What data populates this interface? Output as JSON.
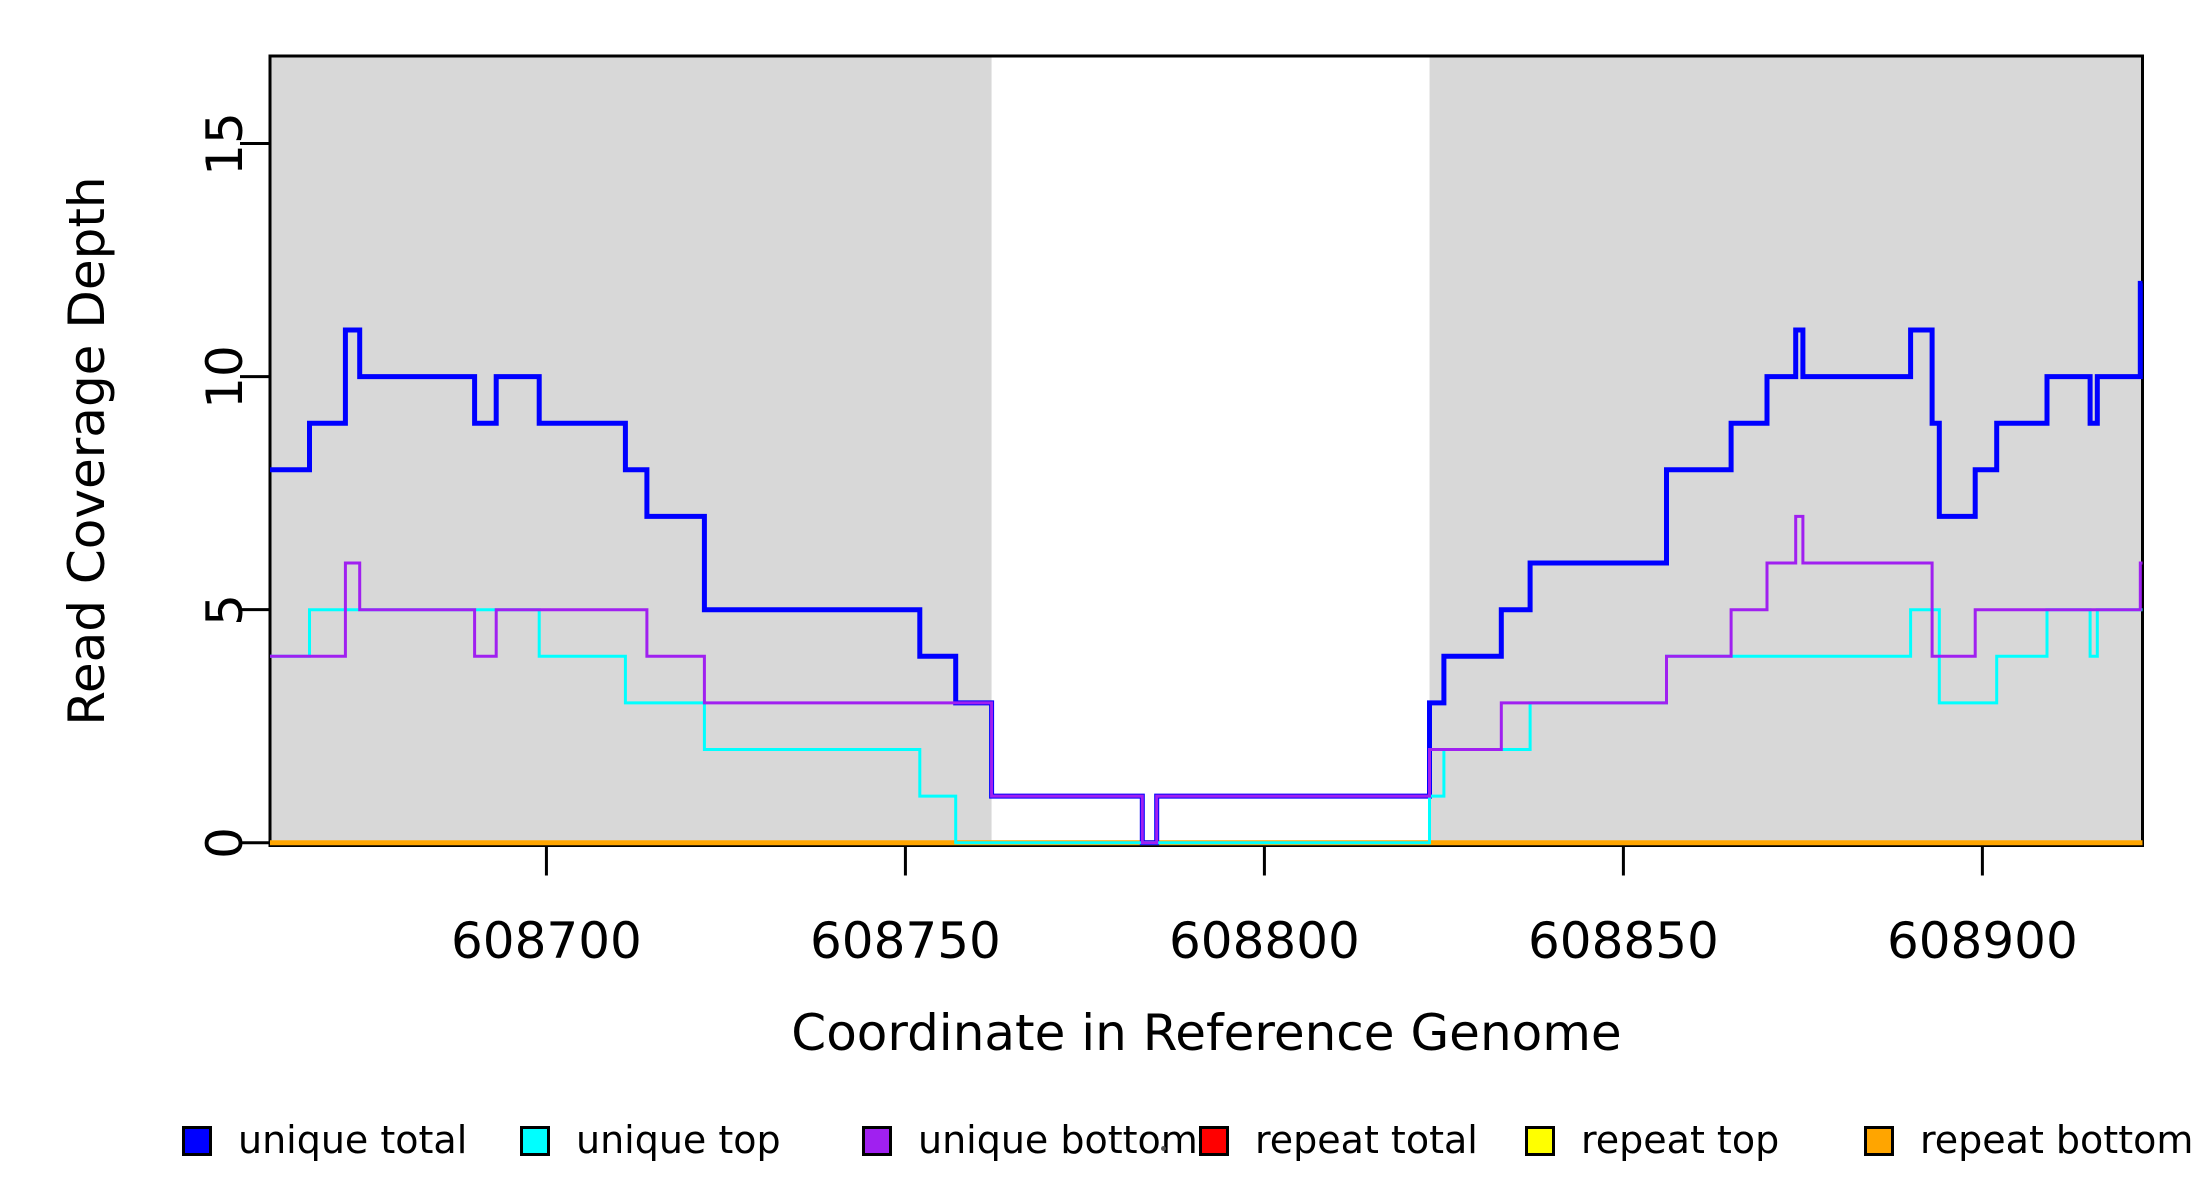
{
  "axes": {
    "x_label": "Coordinate in Reference Genome",
    "y_label": "Read Coverage Depth",
    "x_ticks": [
      {
        "value": 608700,
        "label": "608700"
      },
      {
        "value": 608750,
        "label": "608750"
      },
      {
        "value": 608800,
        "label": "608800"
      },
      {
        "value": 608850,
        "label": "608850"
      },
      {
        "value": 608900,
        "label": "608900"
      }
    ],
    "y_ticks": [
      {
        "value": 0,
        "label": "0"
      },
      {
        "value": 5,
        "label": "5"
      },
      {
        "value": 10,
        "label": "10"
      },
      {
        "value": 15,
        "label": "15"
      }
    ]
  },
  "legend": [
    {
      "label": "unique total",
      "color": "#0000FF"
    },
    {
      "label": "unique top",
      "color": "#00FFFF"
    },
    {
      "label": "unique bottom",
      "color": "#A020F0"
    },
    {
      "label": "repeat total",
      "color": "#FF0000"
    },
    {
      "label": "repeat top",
      "color": "#FFFF00"
    },
    {
      "label": "repeat bottom",
      "color": "#FFA500"
    }
  ],
  "chart_data": {
    "type": "line",
    "subtype": "step-coverage",
    "title": "",
    "xlabel": "Coordinate in Reference Genome",
    "ylabel": "Read Coverage Depth",
    "x_range": [
      608661.5,
      608922.3
    ],
    "y_range": [
      0,
      16.88
    ],
    "grid": false,
    "legend_position": "bottom",
    "plot_background": "#FFFFFF",
    "shade_color": "#D8D8D8",
    "shaded_regions": [
      [
        608661.5,
        608762
      ],
      [
        608823,
        608922.3
      ]
    ],
    "unshaded_gap_region": [
      608762,
      608823
    ],
    "series": [
      {
        "name": "repeat total",
        "color": "#FF0000",
        "line_width": 3,
        "steps": [
          [
            608662,
            0
          ]
        ]
      },
      {
        "name": "repeat top",
        "color": "#FFFF00",
        "line_width": 3,
        "steps": [
          [
            608662,
            0
          ]
        ]
      },
      {
        "name": "repeat bottom",
        "color": "#FFA500",
        "line_width": 5,
        "steps": [
          [
            608662,
            0
          ]
        ]
      },
      {
        "name": "unique total",
        "color": "#0000FF",
        "line_width": 5,
        "steps": [
          [
            608662,
            8
          ],
          [
            608667,
            9
          ],
          [
            608672,
            11
          ],
          [
            608674,
            10
          ],
          [
            608690,
            9
          ],
          [
            608693,
            10
          ],
          [
            608699,
            9
          ],
          [
            608711,
            8
          ],
          [
            608714,
            7
          ],
          [
            608722,
            5
          ],
          [
            608752,
            4
          ],
          [
            608757,
            3
          ],
          [
            608762,
            1
          ],
          [
            608783,
            0
          ],
          [
            608785,
            1
          ],
          [
            608823,
            3
          ],
          [
            608825,
            4
          ],
          [
            608833,
            5
          ],
          [
            608837,
            6
          ],
          [
            608856,
            8
          ],
          [
            608865,
            9
          ],
          [
            608870,
            10
          ],
          [
            608874,
            11
          ],
          [
            608875,
            10
          ],
          [
            608890,
            11
          ],
          [
            608893,
            9
          ],
          [
            608894,
            7
          ],
          [
            608899,
            8
          ],
          [
            608902,
            9
          ],
          [
            608909,
            10
          ],
          [
            608915,
            9
          ],
          [
            608916,
            10
          ],
          [
            608922,
            12
          ]
        ]
      },
      {
        "name": "unique top",
        "color": "#00FFFF",
        "line_width": 3,
        "steps": [
          [
            608662,
            4
          ],
          [
            608667,
            5
          ],
          [
            608699,
            4
          ],
          [
            608711,
            3
          ],
          [
            608722,
            2
          ],
          [
            608752,
            1
          ],
          [
            608757,
            0
          ],
          [
            608823,
            1
          ],
          [
            608825,
            2
          ],
          [
            608837,
            3
          ],
          [
            608856,
            4
          ],
          [
            608890,
            5
          ],
          [
            608894,
            3
          ],
          [
            608902,
            4
          ],
          [
            608909,
            5
          ],
          [
            608915,
            4
          ],
          [
            608916,
            5
          ]
        ]
      },
      {
        "name": "unique bottom",
        "color": "#A020F0",
        "line_width": 3,
        "steps": [
          [
            608662,
            4
          ],
          [
            608672,
            6
          ],
          [
            608674,
            5
          ],
          [
            608690,
            4
          ],
          [
            608693,
            5
          ],
          [
            608714,
            4
          ],
          [
            608722,
            3
          ],
          [
            608762,
            1
          ],
          [
            608783,
            0
          ],
          [
            608785,
            1
          ],
          [
            608823,
            2
          ],
          [
            608833,
            3
          ],
          [
            608856,
            4
          ],
          [
            608865,
            5
          ],
          [
            608870,
            6
          ],
          [
            608874,
            7
          ],
          [
            608875,
            6
          ],
          [
            608893,
            4
          ],
          [
            608899,
            5
          ],
          [
            608922,
            6
          ]
        ]
      }
    ]
  }
}
